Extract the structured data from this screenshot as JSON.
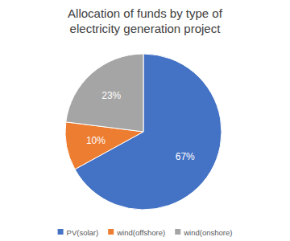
{
  "chart_data": {
    "type": "pie",
    "title": "Allocation of funds by type of electricity generation project",
    "categories": [
      "PV(solar)",
      "wind(offshore)",
      "wind(onshore)"
    ],
    "values": [
      67,
      10,
      23
    ],
    "value_labels": [
      "67%",
      "10%",
      "23%"
    ],
    "colors": [
      "#4472c4",
      "#ed7d31",
      "#a5a5a5"
    ],
    "data_labels": true,
    "legend": "bottom"
  }
}
